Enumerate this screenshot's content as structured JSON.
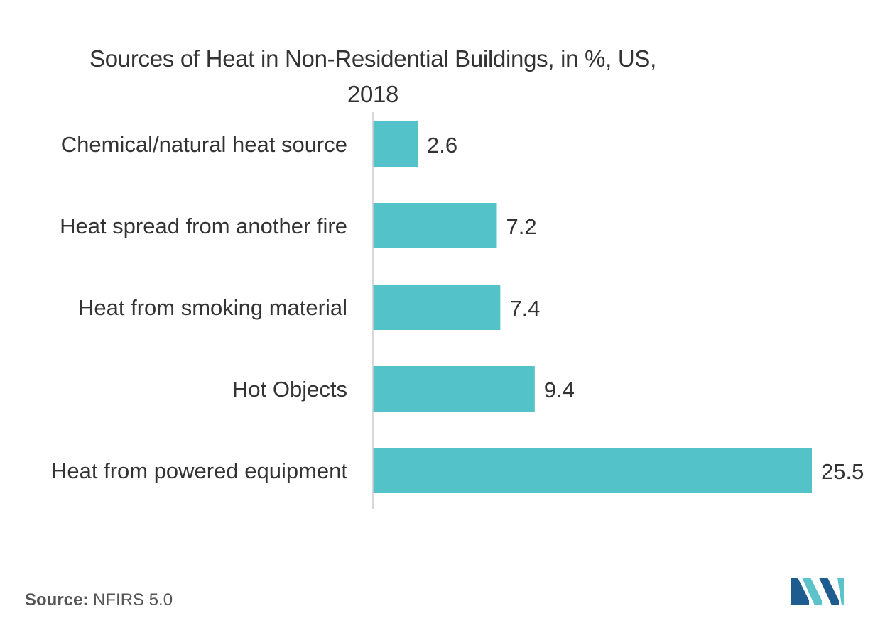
{
  "chart_data": {
    "type": "bar",
    "orientation": "horizontal",
    "title_line1": "Sources of Heat in Non-Residential Buildings, in  %, US,",
    "title_line2": "2018",
    "categories": [
      "Chemical/natural heat source",
      "Heat spread from another fire",
      "Heat from smoking material",
      "Hot Objects",
      "Heat from powered equipment"
    ],
    "values": [
      2.6,
      7.2,
      7.4,
      9.4,
      25.5
    ],
    "value_labels": [
      "2.6",
      "7.2",
      "7.4",
      "9.4",
      "25.5"
    ],
    "xlim": [
      0,
      25.5
    ],
    "grid": false,
    "legend": "none",
    "bar_color": "#53C3C9"
  },
  "source": {
    "label": "Source:",
    "text": "NFIRS 5.0"
  },
  "colors": {
    "bar": "#53C3C9",
    "axis": "#cccccc",
    "text": "#333333",
    "logo_dark": "#1E5B8F",
    "logo_light": "#5CC3CB"
  }
}
